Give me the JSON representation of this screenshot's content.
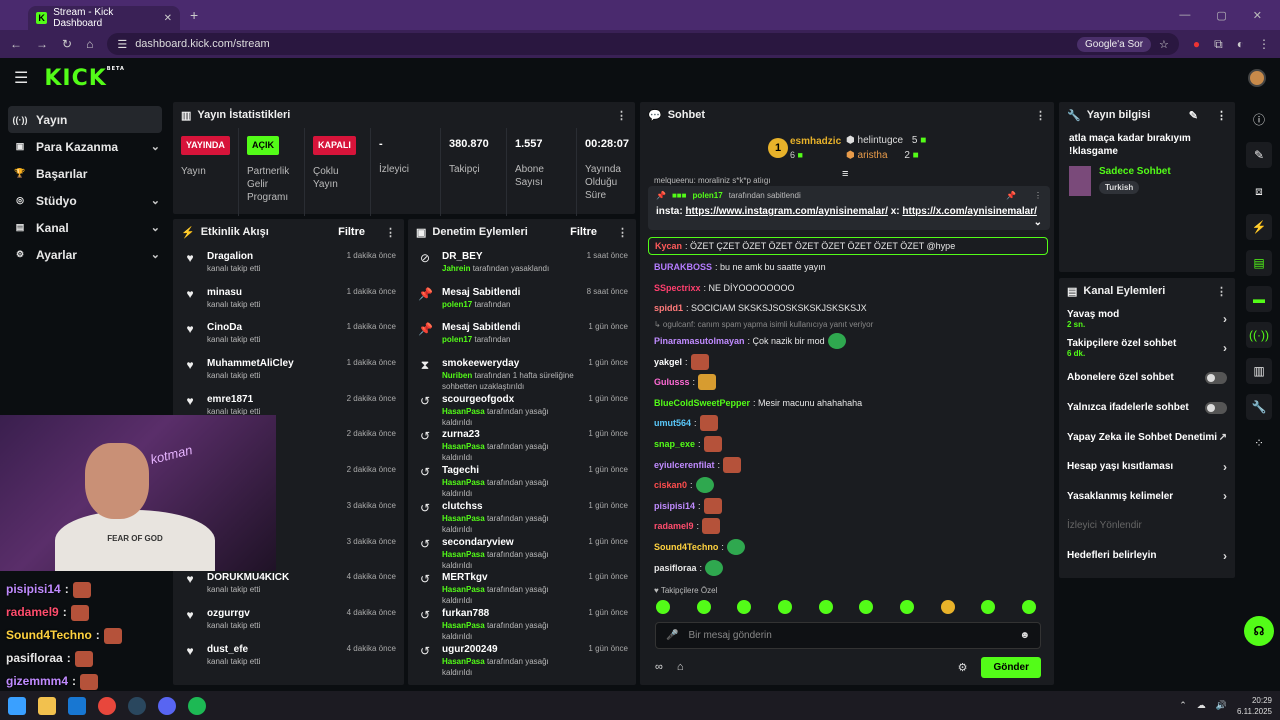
{
  "browser": {
    "tab_title": "Stream - Kick Dashboard",
    "url": "dashboard.kick.com/stream",
    "google_sor": "Google'a Sor"
  },
  "header": {
    "logo": "KICK",
    "logo_badge": "BETA"
  },
  "sidebar": {
    "items": [
      {
        "icon": "broadcast-icon",
        "glyph": "((·))",
        "label": "Yayın"
      },
      {
        "icon": "money-icon",
        "glyph": "▣",
        "label": "Para Kazanma"
      },
      {
        "icon": "trophy-icon",
        "glyph": "🏆",
        "label": "Başarılar"
      },
      {
        "icon": "studio-icon",
        "glyph": "◎",
        "label": "Stüdyo"
      },
      {
        "icon": "channel-icon",
        "glyph": "▤",
        "label": "Kanal"
      },
      {
        "icon": "settings-icon",
        "glyph": "⚙",
        "label": "Ayarlar"
      }
    ]
  },
  "stats": {
    "title": "Yayın İstatistikleri",
    "cells": [
      {
        "badge": "YAYINDA",
        "label": "Yayın"
      },
      {
        "badge": "AÇIK",
        "label": "Partnerlik Gelir Programı"
      },
      {
        "badge": "KAPALI",
        "label": "Çoklu Yayın"
      },
      {
        "value": "-",
        "label": "İzleyici"
      },
      {
        "value": "380.870",
        "label": "Takipçi"
      },
      {
        "value": "1.557",
        "label": "Abone Sayısı"
      },
      {
        "value": "00:28:07",
        "label": "Yayında Olduğu Süre"
      }
    ]
  },
  "activity": {
    "title": "Etkinlik Akışı",
    "filter": "Filtre",
    "rows": [
      {
        "name": "Dragalion",
        "sub": "kanalı takip etti",
        "time": "1 dakika önce"
      },
      {
        "name": "minasu",
        "sub": "kanalı takip etti",
        "time": "1 dakika önce"
      },
      {
        "name": "CinoDa",
        "sub": "kanalı takip etti",
        "time": "1 dakika önce"
      },
      {
        "name": "MuhammetAliCley",
        "sub": "kanalı takip etti",
        "time": "1 dakika önce"
      },
      {
        "name": "emre1871",
        "sub": "kanalı takip etti",
        "time": "2 dakika önce"
      },
      {
        "name": "",
        "sub": "",
        "time": "2 dakika önce"
      },
      {
        "name": "",
        "sub": "",
        "time": "2 dakika önce"
      },
      {
        "name": "",
        "sub": "",
        "time": "3 dakika önce"
      },
      {
        "name": "",
        "sub": "",
        "time": "3 dakika önce"
      },
      {
        "name": "DORUKMU4KICK",
        "sub": "kanalı takip etti",
        "time": "4 dakika önce"
      },
      {
        "name": "ozgurrgv",
        "sub": "kanalı takip etti",
        "time": "4 dakika önce"
      },
      {
        "name": "dust_efe",
        "sub": "kanalı takip etti",
        "time": "4 dakika önce"
      }
    ]
  },
  "moderation": {
    "title": "Denetim Eylemleri",
    "filter": "Filtre",
    "rows": [
      {
        "icon": "ban-icon",
        "glyph": "⊘",
        "name": "DR_BEY",
        "actor": "Jahrein",
        "sub": "tarafından yasaklandı",
        "time": "1 saat önce"
      },
      {
        "icon": "pin-icon",
        "glyph": "📌",
        "name": "Mesaj Sabitlendi",
        "actor": "polen17",
        "sub": "tarafından",
        "time": "8 saat önce"
      },
      {
        "icon": "pin-icon",
        "glyph": "📌",
        "name": "Mesaj Sabitlendi",
        "actor": "polen17",
        "sub": "tarafından",
        "time": "1 gün önce"
      },
      {
        "icon": "hourglass-icon",
        "glyph": "⧗",
        "name": "smokeeweryday",
        "actor": "Nuriben",
        "sub": "tarafından 1 hafta süreliğine sohbetten uzaklaştırıldı",
        "time": "1 gün önce"
      },
      {
        "icon": "undo-icon",
        "glyph": "↺",
        "name": "scourgeofgodx",
        "actor": "HasanPasa",
        "sub": "tarafından yasağı kaldırıldı",
        "time": "1 gün önce"
      },
      {
        "icon": "undo-icon",
        "glyph": "↺",
        "name": "zurna23",
        "actor": "HasanPasa",
        "sub": "tarafından yasağı kaldırıldı",
        "time": "1 gün önce"
      },
      {
        "icon": "undo-icon",
        "glyph": "↺",
        "name": "Tagechi",
        "actor": "HasanPasa",
        "sub": "tarafından yasağı kaldırıldı",
        "time": "1 gün önce"
      },
      {
        "icon": "undo-icon",
        "glyph": "↺",
        "name": "clutchss",
        "actor": "HasanPasa",
        "sub": "tarafından yasağı kaldırıldı",
        "time": "1 gün önce"
      },
      {
        "icon": "undo-icon",
        "glyph": "↺",
        "name": "secondaryview",
        "actor": "HasanPasa",
        "sub": "tarafından yasağı kaldırıldı",
        "time": "1 gün önce"
      },
      {
        "icon": "undo-icon",
        "glyph": "↺",
        "name": "MERTkgv",
        "actor": "HasanPasa",
        "sub": "tarafından yasağı kaldırıldı",
        "time": "1 gün önce"
      },
      {
        "icon": "undo-icon",
        "glyph": "↺",
        "name": "furkan788",
        "actor": "HasanPasa",
        "sub": "tarafından yasağı kaldırıldı",
        "time": "1 gün önce"
      },
      {
        "icon": "undo-icon",
        "glyph": "↺",
        "name": "ugur200249",
        "actor": "HasanPasa",
        "sub": "tarafından yasağı kaldırıldı",
        "time": "1 gün önce"
      }
    ]
  },
  "chat": {
    "title": "Sohbet",
    "leaderboard": {
      "first": {
        "rank": "1",
        "name": "esmhadzic",
        "count": "6"
      },
      "second": {
        "name": "helintugce",
        "count": "5"
      },
      "third": {
        "name": "aristha",
        "count": "2"
      }
    },
    "peek": "melqueenu: moraliniz s*k*p atiıgı",
    "pinned": {
      "by": "polen17",
      "by_suffix": "tarafından sabitlendi",
      "text_prefix": "insta: ",
      "link1": "https://www.instagram.com/aynisinemalar/",
      "mid": " x: ",
      "link2": "https://x.com/aynisinemalar/"
    },
    "messages": [
      {
        "user": "Kycan",
        "color": "#ff5a5a",
        "text": ": ÖZET ÇZET ÖZET ÖZET ÖZET ÖZET ÖZET ÖZET ÖZET @hype",
        "emote": "",
        "hl": true
      },
      {
        "user": "BURAKBOSS",
        "color": "#b57cff",
        "text": ": bu ne amk bu saatte yayın",
        "emote": ""
      },
      {
        "user": "SSpectrixx",
        "color": "#ff3f6e",
        "text": ": NE DİYOOOOOOOO",
        "emote": ""
      },
      {
        "user": "spidd1",
        "color": "#ff7a7a",
        "text": ": SOCICIAM SKSKSJSOSKSKSKJSKSKSJX",
        "emote": ""
      },
      {
        "reply": "↳ ogulcanf: canım spam yapma isimli kullanıcıya yanıt veriyor"
      },
      {
        "user": "Pinaramasutolmayan",
        "color": "#c08bff",
        "text": ": Çok nazik bir mod",
        "emote": "g"
      },
      {
        "user": "yakgel",
        "color": "#ffffff",
        "text": ":",
        "emote": "r"
      },
      {
        "user": "Gulusss",
        "color": "#ff6ad5",
        "text": ":",
        "emote": "y"
      },
      {
        "user": "BlueColdSweetPepper",
        "color": "#53fc18",
        "text": ": Mesir macunu ahahahaha",
        "emote": ""
      },
      {
        "user": "umut564",
        "color": "#5ac8fa",
        "text": ":",
        "emote": "r"
      },
      {
        "user": "snap_exe",
        "color": "#53fc18",
        "text": ":",
        "emote": "r"
      },
      {
        "user": "eyiulcerenfilat",
        "color": "#c08bff",
        "text": ":",
        "emote": "r"
      },
      {
        "user": "ciskan0",
        "color": "#ff4d4d",
        "text": ":",
        "emote": "g"
      },
      {
        "user": "pisipisi14",
        "color": "#c08bff",
        "text": ":",
        "emote": "r"
      },
      {
        "user": "radamel9",
        "color": "#ff4d6d",
        "text": ":",
        "emote": "r"
      },
      {
        "user": "Sound4Techno",
        "color": "#ffd23f",
        "text": ":",
        "emote": "g"
      },
      {
        "user": "pasifloraa",
        "color": "#e8e8e8",
        "text": ":",
        "emote": "g"
      }
    ],
    "followers_only": "♥ Takipçilere Özel",
    "input_placeholder": "Bir mesaj gönderin",
    "send_label": "Gönder"
  },
  "stream_info": {
    "title": "Yayın bilgisi",
    "stream_title": "atla maça kadar bırakıyım !klasgame",
    "category": "Sadece Sohbet",
    "tag": "Turkish"
  },
  "channel_actions": {
    "title": "Kanal Eylemleri",
    "items": [
      {
        "label": "Yavaş mod",
        "sub": "2 sn.",
        "type": "chev"
      },
      {
        "label": "Takipçilere özel sohbet",
        "sub": "6 dk.",
        "type": "chev"
      },
      {
        "label": "Abonelere özel sohbet",
        "sub": "",
        "type": "toggle"
      },
      {
        "label": "Yalnızca ifadelerle sohbet",
        "sub": "",
        "type": "toggle"
      },
      {
        "label": "Yapay Zeka ile Sohbet Denetimi",
        "sub": "",
        "type": "ext"
      },
      {
        "label": "Hesap yaşı kısıtlaması",
        "sub": "",
        "type": "chev"
      },
      {
        "label": "Yasaklanmış kelimeler",
        "sub": "",
        "type": "chev"
      },
      {
        "label": "İzleyici Yönlendir",
        "sub": "",
        "type": "disabled"
      },
      {
        "label": "Hedefleri belirleyin",
        "sub": "",
        "type": "chev"
      }
    ]
  },
  "webcam": {
    "shirt_text": "FEAR OF GOD",
    "neon_text": "kotman"
  },
  "overlay_chat": [
    {
      "user": "pisipisi14",
      "color": "#c08bff"
    },
    {
      "user": "radamel9",
      "color": "#ff4d6d"
    },
    {
      "user": "Sound4Techno",
      "color": "#ffd23f"
    },
    {
      "user": "pasifloraa",
      "color": "#e8e8e8"
    },
    {
      "user": "gizemmm4",
      "color": "#c08bff"
    }
  ],
  "taskbar": {
    "time": "20:29",
    "date": "6.11.2025"
  }
}
